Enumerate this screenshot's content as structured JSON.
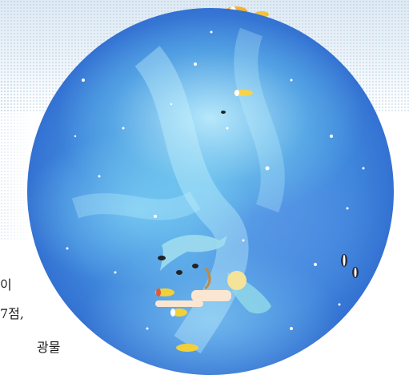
{
  "fragments": {
    "line1": "이",
    "line2": "7점,",
    "line3": "광물"
  },
  "colors": {
    "disc_center": "#5fb3ea",
    "disc_edge": "#2650bf",
    "pattern": "#dfeaf3"
  },
  "icons": [
    "dolphin-icon",
    "fish-icon",
    "figure-icon"
  ]
}
